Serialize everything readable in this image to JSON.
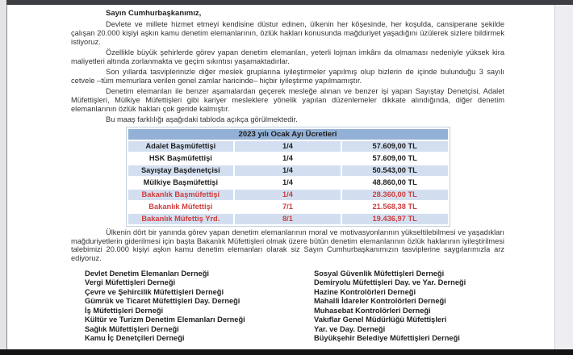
{
  "document": {
    "greeting": "Sayın Cumhurbaşkanımız,",
    "paragraphs": [
      "Devlete ve millete hizmet etmeyi kendisine düstur edinen, ülkenin her köşesinde, her koşulda, cansiperane şekilde çalışan 20.000 kişiyi aşkın kamu denetim elemanlarının, özlük hakları konusunda mağduriyet yaşadığını üzülerek sizlere bildirmek istiyoruz.",
      "Özellikle büyük şehirlerde görev yapan denetim elemanları, yeterli lojman imkânı da olmaması nedeniyle yüksek kira maliyetleri altında zorlanmakta ve geçim sıkıntısı yaşamaktadırlar.",
      "Son yıllarda tasviplerinizle diğer meslek gruplarına iyileştirmeler yapılmış olup bizlerin de içinde bulunduğu 3 sayılı cetvele –tüm memurlara verilen genel zamlar haricinde– hiçbir iyileştirme yapılmamıştır.",
      "Denetim elemanları ile benzer aşamalardan geçerek mesleğe alınan ve benzer işi yapan Sayıştay Denetçisi, Adalet Müfettişleri, Mülkiye Müfettişleri gibi kariyer mesleklere yönelik yapılan düzenlemeler dikkate alındığında, diğer denetim elemanlarının özlük hakları çok geride kalmıştır.",
      "Bu maaş farklılığı aşağıdaki tabloda açıkça görülmektedir."
    ],
    "table": {
      "title": "2023 yılı Ocak Ayı Ücretleri",
      "rows": [
        {
          "title": "Adalet Başmüfettişi",
          "grade": "1/4",
          "salary": "57.609,00 TL",
          "highlight": false
        },
        {
          "title": "HSK Başmüfettişi",
          "grade": "1/4",
          "salary": "57.609,00 TL",
          "highlight": false
        },
        {
          "title": "Sayıştay Başdenetçisi",
          "grade": "1/4",
          "salary": "50.543,00 TL",
          "highlight": false
        },
        {
          "title": "Mülkiye Başmüfettişi",
          "grade": "1/4",
          "salary": "48.860,00 TL",
          "highlight": false
        },
        {
          "title": "Bakanlık Başmüfettişi",
          "grade": "1/4",
          "salary": "28.360,00 TL",
          "highlight": true
        },
        {
          "title": "Bakanlık Müfettişi",
          "grade": "7/1",
          "salary": "21.568,38 TL",
          "highlight": true
        },
        {
          "title": "Bakanlık Müfettiş Yrd.",
          "grade": "8/1",
          "salary": "19.436,97 TL",
          "highlight": true
        }
      ]
    },
    "closing_paragraph": "Ülkenin dört bir yanında görev yapan denetim elemanlarının moral ve motivasyonlarının yükseltilebilmesi ve yaşadıkları mağduriyetlerin giderilmesi için başta Bakanlık Müfettişleri olmak üzere bütün denetim elemanlarının özlük haklarının iyileştirilmesi talebimizi 20.000 kişiyi aşkın kamu denetim elemanları olarak siz Sayın Cumhurbaşkanımızın tasviplerine saygılarımızla arz ediyoruz.",
    "signatories_left": [
      "Devlet Denetim Elemanları Derneği",
      "Vergi Müfettişleri Derneği",
      "Çevre ve Şehircilik Müfettişleri Derneği",
      "Gümrük ve Ticaret Müfettişleri Day. Derneği",
      "İş Müfettişleri Derneği",
      "Kültür ve Turizm Denetim Elemanları Derneği",
      "Sağlık Müfettişleri Derneği",
      "Kamu İç Denetçileri Derneği"
    ],
    "signatories_right": [
      "Sosyal Güvenlik Müfettişleri Derneği",
      "Demiryolu Müfettişleri Day. ve Yar. Derneği",
      "Hazine Kontrolörleri Derneği",
      "Mahalli İdareler Kontrolörleri Derneği",
      "Muhasebat Kontrolörleri Derneği",
      "Vakıflar Genel Müdürlüğü Müfettişleri",
      "Yar. ve Day. Derneği",
      "Büyükşehir Belediye Müfettişleri Derneği"
    ]
  },
  "colors": {
    "table_header_bg": "#93b1d6",
    "table_stripe_bg": "#d3dff0",
    "highlight_text": "#cf3e3e",
    "body_text": "#333333",
    "top_bar": "#3e3f44",
    "bottom_bar": "#141416"
  }
}
